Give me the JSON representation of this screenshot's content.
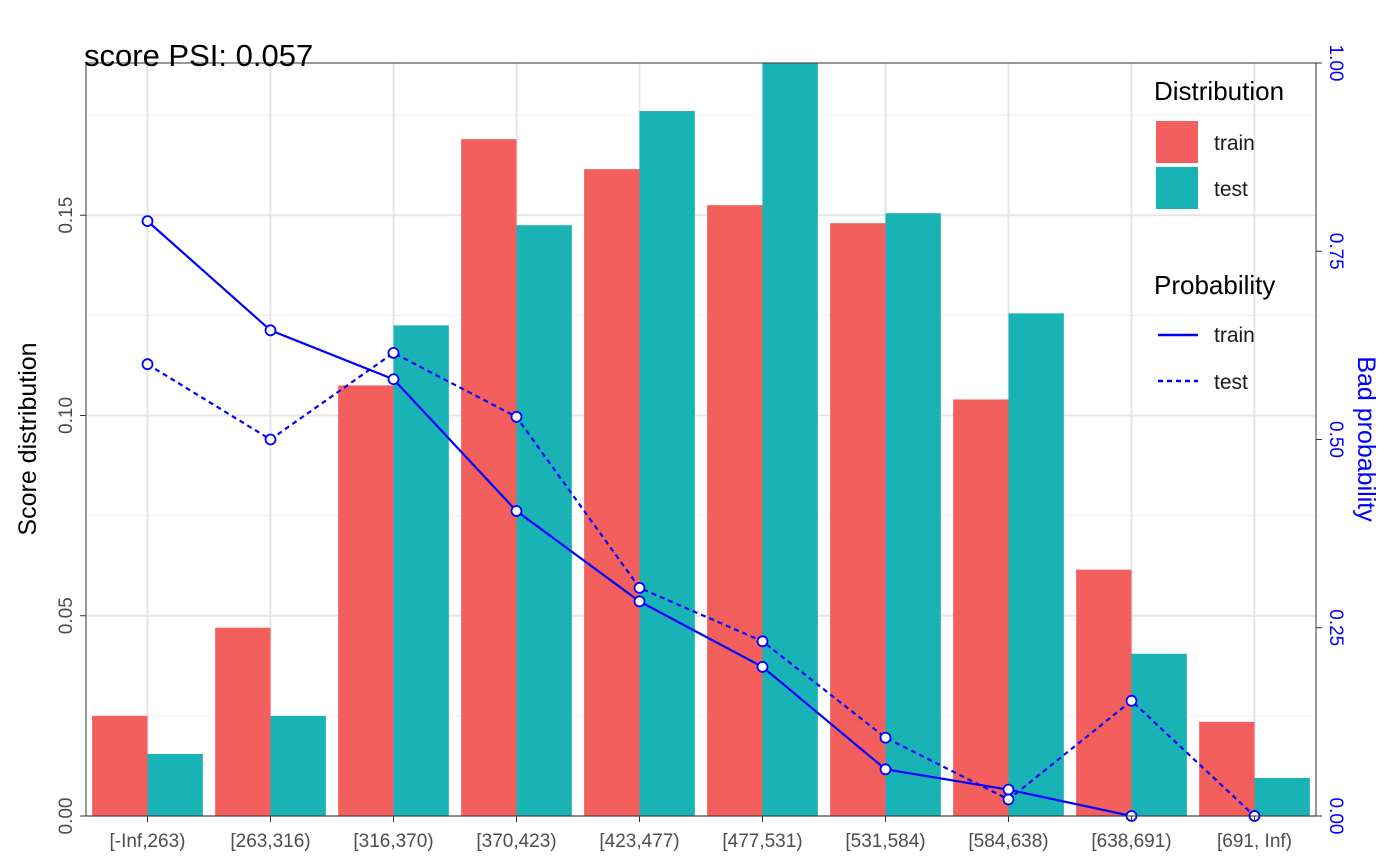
{
  "chart_data": {
    "type": "bar",
    "title": "score PSI: 0.057",
    "categories": [
      "[-Inf,263)",
      "[263,316)",
      "[316,370)",
      "[370,423)",
      "[423,477)",
      "[477,531)",
      "[531,584)",
      "[584,638)",
      "[638,691)",
      "[691, Inf)"
    ],
    "ylabel": "Score distribution",
    "y2label": "Bad probability",
    "ylim": [
      0,
      0.188
    ],
    "y2lim": [
      0,
      1.0
    ],
    "yticks": [
      "0.00",
      "0.05",
      "0.10",
      "0.15"
    ],
    "y2ticks": [
      "0.00",
      "0.25",
      "0.50",
      "0.75",
      "1.00"
    ],
    "grid": true,
    "legend_position": "right",
    "series": [
      {
        "name": "train",
        "kind": "bar",
        "color": "#F25F5C",
        "values": [
          0.025,
          0.047,
          0.1075,
          0.169,
          0.1615,
          0.1525,
          0.148,
          0.104,
          0.0615,
          0.0235
        ]
      },
      {
        "name": "test",
        "kind": "bar",
        "color": "#1AB3B5",
        "values": [
          0.0155,
          0.025,
          0.1225,
          0.1475,
          0.176,
          0.188,
          0.1505,
          0.1255,
          0.0405,
          0.0095
        ]
      }
    ],
    "probability_series": [
      {
        "name": "train",
        "kind": "line",
        "style": "solid",
        "color": "#0000FF",
        "values": [
          0.79,
          0.645,
          0.58,
          0.405,
          0.285,
          0.198,
          0.062,
          0.035,
          0.0,
          null
        ]
      },
      {
        "name": "test",
        "kind": "line",
        "style": "dashed",
        "color": "#0000FF",
        "values": [
          0.6,
          0.5,
          0.615,
          0.53,
          0.303,
          0.232,
          0.104,
          0.022,
          0.153,
          0.0
        ]
      }
    ]
  },
  "legend": {
    "distribution_title": "Distribution",
    "distribution_items": [
      "train",
      "test"
    ],
    "probability_title": "Probability",
    "probability_items": [
      "train",
      "test"
    ]
  }
}
